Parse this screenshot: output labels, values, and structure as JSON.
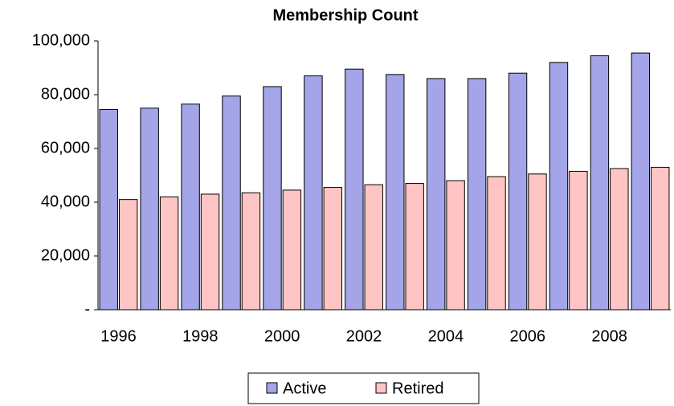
{
  "chart_data": {
    "type": "bar",
    "title": "Membership Count",
    "categories": [
      "1996",
      null,
      "1998",
      null,
      "2000",
      null,
      "2002",
      null,
      "2004",
      null,
      "2006",
      null,
      "2008",
      null
    ],
    "series": [
      {
        "name": "Active",
        "color": "#a4a4e8",
        "values": [
          74500,
          75000,
          76500,
          79500,
          83000,
          87000,
          89500,
          87500,
          86000,
          86000,
          88000,
          92000,
          94500,
          95500
        ]
      },
      {
        "name": "Retired",
        "color": "#ffc4c4",
        "values": [
          41000,
          42000,
          43000,
          43500,
          44500,
          45500,
          46500,
          47000,
          48000,
          49500,
          50500,
          51500,
          52500,
          53000
        ]
      }
    ],
    "ylim": [
      0,
      100000
    ],
    "yticks": [
      {
        "value": 0,
        "label": "-"
      },
      {
        "value": 20000,
        "label": "20,000"
      },
      {
        "value": 40000,
        "label": "40,000"
      },
      {
        "value": 60000,
        "label": "60,000"
      },
      {
        "value": 80000,
        "label": "80,000"
      },
      {
        "value": 100000,
        "label": "100,000"
      }
    ],
    "grid": false,
    "legend": "bottom"
  }
}
